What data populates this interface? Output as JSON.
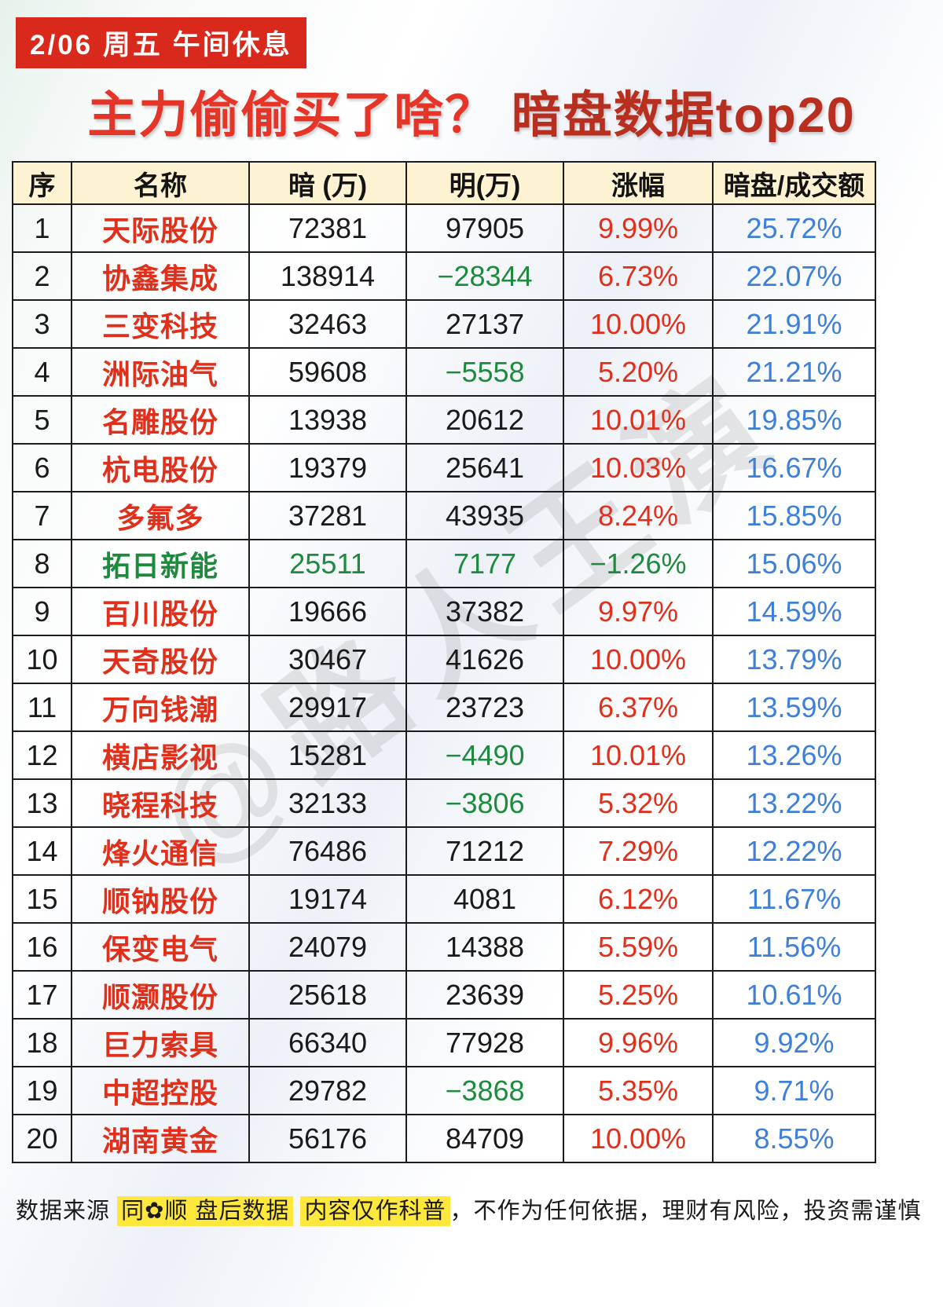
{
  "banner": {
    "text": "2/06 周五  午间休息"
  },
  "title": {
    "part1": "主力偷偷买了啥？",
    "part2": " 暗盘数据top20"
  },
  "watermark": "@路人王演",
  "colors": {
    "banner_bg": "#d9291c",
    "title_red": "#e53528",
    "title_dark_red": "#b92f1f",
    "name_red": "#e0301c",
    "negative_green": "#1e8a3e",
    "ratio_blue": "#3d7fd9",
    "header_bg": "#fdf3d3",
    "highlight_yellow": "#ffe83d"
  },
  "table": {
    "headers": [
      "序",
      "名称",
      "暗 (万)",
      "明(万)",
      "涨幅",
      "暗盘/成交额"
    ],
    "rows": [
      {
        "no": "1",
        "name": "天际股份",
        "dark": "72381",
        "light": "97905",
        "change": "9.99%",
        "ratio": "25.72%",
        "name_c": "red",
        "dark_c": "black",
        "light_c": "black",
        "change_c": "red"
      },
      {
        "no": "2",
        "name": "协鑫集成",
        "dark": "138914",
        "light": "−28344",
        "change": "6.73%",
        "ratio": "22.07%",
        "name_c": "red",
        "dark_c": "black",
        "light_c": "green",
        "change_c": "red"
      },
      {
        "no": "3",
        "name": "三变科技",
        "dark": "32463",
        "light": "27137",
        "change": "10.00%",
        "ratio": "21.91%",
        "name_c": "red",
        "dark_c": "black",
        "light_c": "black",
        "change_c": "red"
      },
      {
        "no": "4",
        "name": "洲际油气",
        "dark": "59608",
        "light": "−5558",
        "change": "5.20%",
        "ratio": "21.21%",
        "name_c": "red",
        "dark_c": "black",
        "light_c": "green",
        "change_c": "red"
      },
      {
        "no": "5",
        "name": "名雕股份",
        "dark": "13938",
        "light": "20612",
        "change": "10.01%",
        "ratio": "19.85%",
        "name_c": "red",
        "dark_c": "black",
        "light_c": "black",
        "change_c": "red"
      },
      {
        "no": "6",
        "name": "杭电股份",
        "dark": "19379",
        "light": "25641",
        "change": "10.03%",
        "ratio": "16.67%",
        "name_c": "red",
        "dark_c": "black",
        "light_c": "black",
        "change_c": "red"
      },
      {
        "no": "7",
        "name": "多氟多",
        "dark": "37281",
        "light": "43935",
        "change": "8.24%",
        "ratio": "15.85%",
        "name_c": "red",
        "dark_c": "black",
        "light_c": "black",
        "change_c": "red"
      },
      {
        "no": "8",
        "name": "拓日新能",
        "dark": "25511",
        "light": "7177",
        "change": "−1.26%",
        "ratio": "15.06%",
        "name_c": "green",
        "dark_c": "green",
        "light_c": "green",
        "change_c": "green"
      },
      {
        "no": "9",
        "name": "百川股份",
        "dark": "19666",
        "light": "37382",
        "change": "9.97%",
        "ratio": "14.59%",
        "name_c": "red",
        "dark_c": "black",
        "light_c": "black",
        "change_c": "red"
      },
      {
        "no": "10",
        "name": "天奇股份",
        "dark": "30467",
        "light": "41626",
        "change": "10.00%",
        "ratio": "13.79%",
        "name_c": "red",
        "dark_c": "black",
        "light_c": "black",
        "change_c": "red"
      },
      {
        "no": "11",
        "name": "万向钱潮",
        "dark": "29917",
        "light": "23723",
        "change": "6.37%",
        "ratio": "13.59%",
        "name_c": "red",
        "dark_c": "black",
        "light_c": "black",
        "change_c": "red"
      },
      {
        "no": "12",
        "name": "横店影视",
        "dark": "15281",
        "light": "−4490",
        "change": "10.01%",
        "ratio": "13.26%",
        "name_c": "red",
        "dark_c": "black",
        "light_c": "green",
        "change_c": "red"
      },
      {
        "no": "13",
        "name": "晓程科技",
        "dark": "32133",
        "light": "−3806",
        "change": "5.32%",
        "ratio": "13.22%",
        "name_c": "red",
        "dark_c": "black",
        "light_c": "green",
        "change_c": "red"
      },
      {
        "no": "14",
        "name": "烽火通信",
        "dark": "76486",
        "light": "71212",
        "change": "7.29%",
        "ratio": "12.22%",
        "name_c": "red",
        "dark_c": "black",
        "light_c": "black",
        "change_c": "red"
      },
      {
        "no": "15",
        "name": "顺钠股份",
        "dark": "19174",
        "light": "4081",
        "change": "6.12%",
        "ratio": "11.67%",
        "name_c": "red",
        "dark_c": "black",
        "light_c": "black",
        "change_c": "red"
      },
      {
        "no": "16",
        "name": "保变电气",
        "dark": "24079",
        "light": "14388",
        "change": "5.59%",
        "ratio": "11.56%",
        "name_c": "red",
        "dark_c": "black",
        "light_c": "black",
        "change_c": "red"
      },
      {
        "no": "17",
        "name": "顺灏股份",
        "dark": "25618",
        "light": "23639",
        "change": "5.25%",
        "ratio": "10.61%",
        "name_c": "red",
        "dark_c": "black",
        "light_c": "black",
        "change_c": "red"
      },
      {
        "no": "18",
        "name": "巨力索具",
        "dark": "66340",
        "light": "77928",
        "change": "9.96%",
        "ratio": "9.92%",
        "name_c": "red",
        "dark_c": "black",
        "light_c": "black",
        "change_c": "red"
      },
      {
        "no": "19",
        "name": "中超控股",
        "dark": "29782",
        "light": "−3868",
        "change": "5.35%",
        "ratio": "9.71%",
        "name_c": "red",
        "dark_c": "black",
        "light_c": "green",
        "change_c": "red"
      },
      {
        "no": "20",
        "name": "湖南黄金",
        "dark": "56176",
        "light": "84709",
        "change": "10.00%",
        "ratio": "8.55%",
        "name_c": "red",
        "dark_c": "black",
        "light_c": "black",
        "change_c": "red"
      }
    ]
  },
  "chart_data": {
    "type": "table",
    "title": "主力偷偷买了啥？ 暗盘数据top20",
    "columns": [
      "序",
      "名称",
      "暗 (万)",
      "明(万)",
      "涨幅",
      "暗盘/成交额"
    ],
    "rows": [
      [
        1,
        "天际股份",
        72381,
        97905,
        "9.99%",
        "25.72%"
      ],
      [
        2,
        "协鑫集成",
        138914,
        -28344,
        "6.73%",
        "22.07%"
      ],
      [
        3,
        "三变科技",
        32463,
        27137,
        "10.00%",
        "21.91%"
      ],
      [
        4,
        "洲际油气",
        59608,
        -5558,
        "5.20%",
        "21.21%"
      ],
      [
        5,
        "名雕股份",
        13938,
        20612,
        "10.01%",
        "19.85%"
      ],
      [
        6,
        "杭电股份",
        19379,
        25641,
        "10.03%",
        "16.67%"
      ],
      [
        7,
        "多氟多",
        37281,
        43935,
        "8.24%",
        "15.85%"
      ],
      [
        8,
        "拓日新能",
        25511,
        7177,
        "-1.26%",
        "15.06%"
      ],
      [
        9,
        "百川股份",
        19666,
        37382,
        "9.97%",
        "14.59%"
      ],
      [
        10,
        "天奇股份",
        30467,
        41626,
        "10.00%",
        "13.79%"
      ],
      [
        11,
        "万向钱潮",
        29917,
        23723,
        "6.37%",
        "13.59%"
      ],
      [
        12,
        "横店影视",
        15281,
        -4490,
        "10.01%",
        "13.26%"
      ],
      [
        13,
        "晓程科技",
        32133,
        -3806,
        "5.32%",
        "13.22%"
      ],
      [
        14,
        "烽火通信",
        76486,
        71212,
        "7.29%",
        "12.22%"
      ],
      [
        15,
        "顺钠股份",
        19174,
        4081,
        "6.12%",
        "11.67%"
      ],
      [
        16,
        "保变电气",
        24079,
        14388,
        "5.59%",
        "11.56%"
      ],
      [
        17,
        "顺灏股份",
        25618,
        23639,
        "5.25%",
        "10.61%"
      ],
      [
        18,
        "巨力索具",
        66340,
        77928,
        "9.96%",
        "9.92%"
      ],
      [
        19,
        "中超控股",
        29782,
        -3868,
        "5.35%",
        "9.71%"
      ],
      [
        20,
        "湖南黄金",
        56176,
        84709,
        "10.00%",
        "8.55%"
      ]
    ]
  },
  "footer": {
    "prefix": "数据来源 ",
    "hl1": "同✿顺  盘后数据",
    "sep": " ",
    "hl2": "内容仅作科普",
    "suffix": "，不作为任何依据，理财有风险，投资需谨慎"
  }
}
